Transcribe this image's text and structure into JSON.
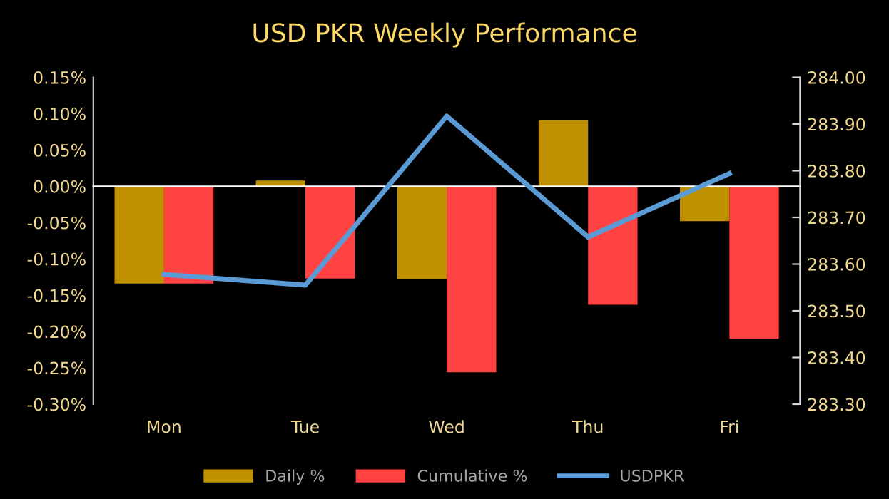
{
  "chart_data": {
    "type": "bar",
    "title": "USD PKR Weekly Performance",
    "categories": [
      "Mon",
      "Tue",
      "Wed",
      "Thu",
      "Fri"
    ],
    "series": [
      {
        "name": "Daily %",
        "color": "#bf9000",
        "values": [
          -0.134,
          0.008,
          -0.128,
          0.091,
          -0.048
        ]
      },
      {
        "name": "Cumulative %",
        "color": "#ff4343",
        "values": [
          -0.134,
          -0.127,
          -0.256,
          -0.163,
          -0.21
        ]
      },
      {
        "name": "USDPKR",
        "type": "line",
        "axis": "y2",
        "color": "#5b9bd5",
        "values": [
          283.578,
          283.555,
          283.917,
          283.658,
          283.794
        ]
      }
    ],
    "ylim": [
      -0.3,
      0.15
    ],
    "yticks": [
      {
        "value": -0.3,
        "label": "-0.30%"
      },
      {
        "value": -0.25,
        "label": "-0.25%"
      },
      {
        "value": -0.2,
        "label": "-0.20%"
      },
      {
        "value": -0.15,
        "label": "-0.15%"
      },
      {
        "value": -0.1,
        "label": "-0.10%"
      },
      {
        "value": -0.05,
        "label": "-0.05%"
      },
      {
        "value": 0,
        "label": "0.00%"
      },
      {
        "value": 0.05,
        "label": "0.05%"
      },
      {
        "value": 0.1,
        "label": "0.10%"
      },
      {
        "value": 0.15,
        "label": "0.15%"
      }
    ],
    "y2lim": [
      283.3,
      284.0
    ],
    "y2ticks": [
      {
        "value": 283.3,
        "label": "283.30"
      },
      {
        "value": 283.4,
        "label": "283.40"
      },
      {
        "value": 283.5,
        "label": "283.50"
      },
      {
        "value": 283.6,
        "label": "283.60"
      },
      {
        "value": 283.7,
        "label": "283.70"
      },
      {
        "value": 283.8,
        "label": "283.80"
      },
      {
        "value": 283.9,
        "label": "283.90"
      },
      {
        "value": 284.0,
        "label": "284.00"
      }
    ],
    "legend": "bottom",
    "marker": "none",
    "line_style": "solid"
  }
}
